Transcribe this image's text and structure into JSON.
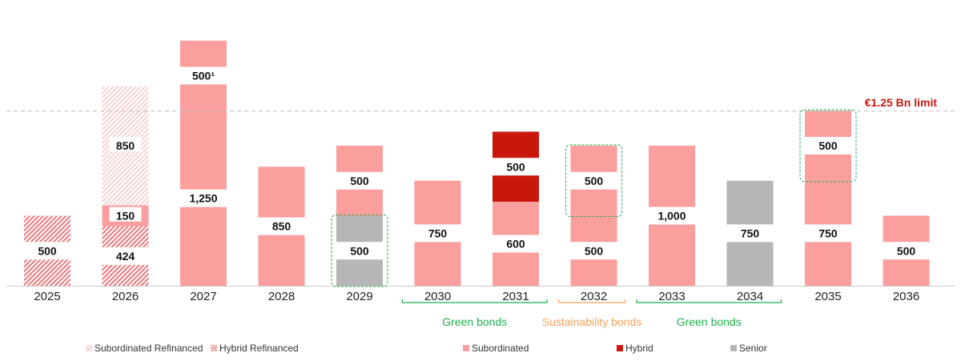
{
  "chart_data": {
    "type": "bar",
    "stacked": true,
    "title": "",
    "xlabel": "",
    "ylabel": "",
    "ylim": [
      0,
      1800
    ],
    "grid": false,
    "categories": [
      "2025",
      "2026",
      "2027",
      "2028",
      "2029",
      "2030",
      "2031",
      "2032",
      "2033",
      "2034",
      "2035",
      "2036"
    ],
    "series": [
      {
        "name": "Hybrid Refinanced",
        "key": "hybrid_ref",
        "color": "#e9797c",
        "pattern": "hatch-dense"
      },
      {
        "name": "Subordinated Refinanced",
        "key": "sub_ref",
        "color": "#f6c9c9",
        "pattern": "hatch-light"
      },
      {
        "name": "Subordinated",
        "key": "sub",
        "color": "#fa9e9e"
      },
      {
        "name": "Hybrid",
        "key": "hybrid",
        "color": "#c8180e"
      },
      {
        "name": "Senior",
        "key": "senior",
        "color": "#b6b6b8"
      }
    ],
    "stacks": [
      {
        "year": "2025",
        "segments": [
          {
            "series": "hybrid_ref",
            "value": 500,
            "label": "500"
          }
        ]
      },
      {
        "year": "2026",
        "segments": [
          {
            "series": "hybrid_ref",
            "value": 424,
            "label": "424"
          },
          {
            "series": "sub",
            "value": 150,
            "label": "150"
          },
          {
            "series": "sub_ref",
            "value": 850,
            "label": "850"
          }
        ]
      },
      {
        "year": "2027",
        "segments": [
          {
            "series": "sub",
            "value": 1250,
            "label": "1,250"
          },
          {
            "series": "sub",
            "value": 500,
            "label": "500¹"
          }
        ]
      },
      {
        "year": "2028",
        "segments": [
          {
            "series": "sub",
            "value": 850,
            "label": "850"
          }
        ]
      },
      {
        "year": "2029",
        "segments": [
          {
            "series": "senior",
            "value": 500,
            "label": "500"
          },
          {
            "series": "sub",
            "value": 500,
            "label": "500"
          }
        ]
      },
      {
        "year": "2030",
        "segments": [
          {
            "series": "sub",
            "value": 750,
            "label": "750"
          }
        ]
      },
      {
        "year": "2031",
        "segments": [
          {
            "series": "sub",
            "value": 600,
            "label": "600"
          },
          {
            "series": "hybrid",
            "value": 500,
            "label": "500"
          }
        ]
      },
      {
        "year": "2032",
        "segments": [
          {
            "series": "sub",
            "value": 500,
            "label": "500"
          },
          {
            "series": "sub",
            "value": 500,
            "label": "500"
          }
        ]
      },
      {
        "year": "2033",
        "segments": [
          {
            "series": "sub",
            "value": 1000,
            "label": "1,000"
          }
        ]
      },
      {
        "year": "2034",
        "segments": [
          {
            "series": "senior",
            "value": 750,
            "label": "750"
          }
        ]
      },
      {
        "year": "2035",
        "segments": [
          {
            "series": "sub",
            "value": 750,
            "label": "750"
          },
          {
            "series": "sub",
            "value": 500,
            "label": "500"
          }
        ]
      },
      {
        "year": "2036",
        "segments": [
          {
            "series": "sub",
            "value": 500,
            "label": "500"
          }
        ]
      }
    ],
    "highlight_boxes": [
      {
        "year": "2029",
        "segment_index": 0
      },
      {
        "year": "2032",
        "segment_index": 1
      },
      {
        "year": "2035",
        "segment_index": 1
      }
    ],
    "reference_line": {
      "value": 1250,
      "label": "€1.25 Bn limit",
      "color": "#c8180e"
    },
    "groups": [
      {
        "label": "Green bonds",
        "from": "2030",
        "to": "2031",
        "color": "#1fb04b"
      },
      {
        "label": "Sustainability bonds",
        "from": "2032",
        "to": "2032",
        "color": "#f4a460"
      },
      {
        "label": "Green bonds",
        "from": "2033",
        "to": "2034",
        "color": "#1fb04b"
      }
    ],
    "legend": [
      {
        "label": "Subordinated Refinanced",
        "series": "sub_ref"
      },
      {
        "label": "Hybrid Refinanced",
        "series": "hybrid_ref"
      },
      {
        "label": "Subordinated",
        "series": "sub"
      },
      {
        "label": "Hybrid",
        "series": "hybrid"
      },
      {
        "label": "Senior",
        "series": "senior"
      }
    ],
    "legend_position": "bottom"
  }
}
